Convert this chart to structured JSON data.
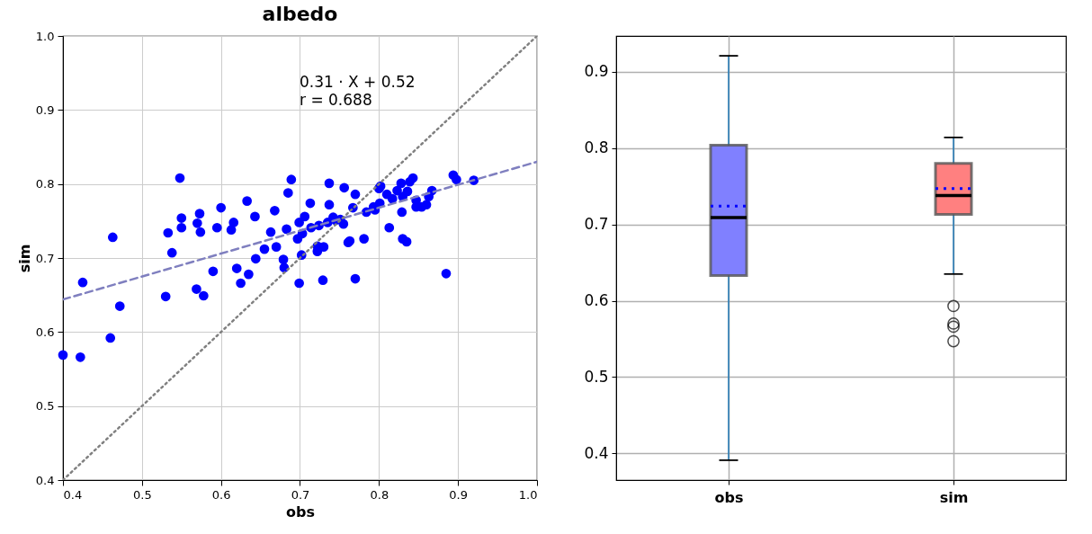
{
  "chart_data": [
    {
      "type": "scatter",
      "title": "albedo",
      "xlabel": "obs",
      "ylabel": "sim",
      "grid": true,
      "xlim": [
        0.4,
        1.0
      ],
      "ylim": [
        0.4,
        1.0
      ],
      "xticks": [
        0.4,
        0.5,
        0.6,
        0.7,
        0.8,
        0.9,
        {
          "value": 1,
          "label": "1.0"
        }
      ],
      "yticks": [
        0.4,
        0.5,
        0.6,
        0.7,
        0.8,
        0.9,
        {
          "value": 1,
          "label": "1.0"
        }
      ],
      "annotations": [
        "0.31 · X + 0.52",
        "r = 0.688"
      ],
      "series": [
        {
          "type": "scatter",
          "marker": "circle",
          "color": "#0000ff",
          "x": [
            0.4,
            0.422,
            0.425,
            0.46,
            0.463,
            0.472,
            0.53,
            0.533,
            0.538,
            0.548,
            0.55,
            0.55,
            0.569,
            0.57,
            0.573,
            0.574,
            0.578,
            0.59,
            0.595,
            0.6,
            0.613,
            0.616,
            0.62,
            0.625,
            0.633,
            0.635,
            0.643,
            0.644,
            0.655,
            0.663,
            0.668,
            0.67,
            0.679,
            0.68,
            0.683,
            0.685,
            0.689,
            0.697,
            0.699,
            0.699,
            0.702,
            0.703,
            0.706,
            0.713,
            0.714,
            0.722,
            0.722,
            0.724,
            0.729,
            0.73,
            0.735,
            0.737,
            0.737,
            0.742,
            0.745,
            0.751,
            0.755,
            0.756,
            0.761,
            0.763,
            0.767,
            0.77,
            0.77,
            0.781,
            0.784,
            0.793,
            0.795,
            0.8,
            0.801,
            0.802,
            0.81,
            0.813,
            0.817,
            0.823,
            0.828,
            0.829,
            0.83,
            0.83,
            0.835,
            0.836,
            0.839,
            0.843,
            0.847,
            0.847,
            0.854,
            0.86,
            0.863,
            0.867,
            0.885,
            0.894,
            0.898,
            0.92
          ],
          "values": [
            0.569,
            0.566,
            0.667,
            0.592,
            0.728,
            0.635,
            0.648,
            0.734,
            0.707,
            0.808,
            0.754,
            0.741,
            0.658,
            0.747,
            0.76,
            0.735,
            0.649,
            0.682,
            0.741,
            0.768,
            0.738,
            0.748,
            0.686,
            0.666,
            0.777,
            0.678,
            0.756,
            0.699,
            0.712,
            0.735,
            0.764,
            0.715,
            0.698,
            0.687,
            0.739,
            0.788,
            0.806,
            0.726,
            0.748,
            0.666,
            0.704,
            0.733,
            0.756,
            0.774,
            0.741,
            0.716,
            0.709,
            0.744,
            0.67,
            0.715,
            0.748,
            0.801,
            0.772,
            0.755,
            0.751,
            0.752,
            0.746,
            0.795,
            0.721,
            0.723,
            0.768,
            0.672,
            0.786,
            0.726,
            0.762,
            0.769,
            0.765,
            0.794,
            0.774,
            0.797,
            0.786,
            0.741,
            0.78,
            0.791,
            0.801,
            0.762,
            0.726,
            0.783,
            0.722,
            0.79,
            0.803,
            0.808,
            0.778,
            0.769,
            0.769,
            0.772,
            0.783,
            0.791,
            0.679,
            0.812,
            0.806,
            0.805
          ]
        },
        {
          "type": "line",
          "color": "#7f7fbf",
          "line_style": "dashed",
          "x": [
            0.4,
            1.0
          ],
          "values": [
            0.644,
            0.83
          ]
        },
        {
          "type": "line",
          "color": "#808080",
          "line_style": "dotted",
          "x": [
            0.4,
            1.0
          ],
          "values": [
            0.4,
            1.0
          ]
        }
      ]
    },
    {
      "type": "box",
      "categories": [
        "obs",
        "sim"
      ],
      "colors": [
        "#8080ff",
        "#ff8080"
      ],
      "grid": true,
      "ylim": [
        0.365,
        0.947
      ],
      "yticks": [
        0.4,
        0.5,
        0.6,
        0.7,
        0.8,
        0.9
      ],
      "boxes": [
        {
          "low": 0.391,
          "q1": 0.633,
          "median": 0.709,
          "q3": 0.804,
          "high": 0.921,
          "mean": 0.724
        },
        {
          "low": 0.635,
          "q1": 0.713,
          "median": 0.738,
          "q3": 0.78,
          "high": 0.814,
          "mean": 0.747,
          "outliers": [
            0.593,
            0.57,
            0.566,
            0.547
          ]
        }
      ]
    }
  ]
}
